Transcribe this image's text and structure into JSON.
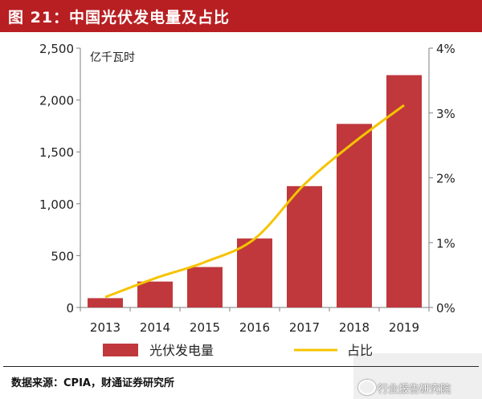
{
  "header": {
    "title": "图 21：中国光伏发电量及占比",
    "color": "#b81f22"
  },
  "chart_data": {
    "type": "bar",
    "title": "",
    "unit_label": "亿千瓦时",
    "categories": [
      "2013",
      "2014",
      "2015",
      "2016",
      "2017",
      "2018",
      "2019"
    ],
    "series": [
      {
        "name": "光伏发电量",
        "type": "bar",
        "axis": "left",
        "values": [
          90,
          250,
          390,
          665,
          1170,
          1770,
          2240
        ],
        "color": "#c0383c"
      },
      {
        "name": "占比",
        "type": "line",
        "axis": "right",
        "values": [
          0.16,
          0.45,
          0.7,
          1.06,
          1.9,
          2.55,
          3.12
        ],
        "color": "#f5c400"
      }
    ],
    "ylim_left": [
      0,
      2500
    ],
    "yticks_left": [
      "0",
      "500",
      "1,000",
      "1,500",
      "2,000",
      "2,500"
    ],
    "ylim_right": [
      0,
      4
    ],
    "yticks_right": [
      "0%",
      "1%",
      "2%",
      "3%",
      "4%"
    ],
    "grid": false,
    "legend_position": "bottom"
  },
  "source": {
    "text": "数据来源：CPIA，财通证券研究所"
  },
  "watermark": {
    "text": "行业报告研究院"
  }
}
